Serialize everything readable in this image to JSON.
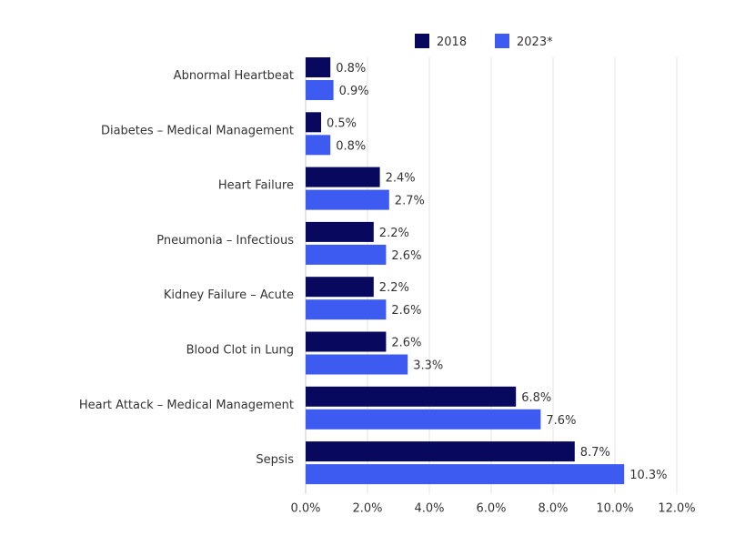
{
  "chart_data": {
    "type": "bar",
    "orientation": "horizontal",
    "title": "",
    "xlabel": "",
    "ylabel": "",
    "categories": [
      "Abnormal Heartbeat",
      "Diabetes – Medical Management",
      "Heart Failure",
      "Pneumonia – Infectious",
      "Kidney Failure – Acute",
      "Blood Clot in Lung",
      "Heart Attack – Medical Management",
      "Sepsis"
    ],
    "series": [
      {
        "name": "2018",
        "color": "#08085e",
        "values": [
          0.8,
          0.5,
          2.4,
          2.2,
          2.2,
          2.6,
          6.8,
          8.7
        ]
      },
      {
        "name": "2023*",
        "color": "#3d5af1",
        "values": [
          0.9,
          0.8,
          2.7,
          2.6,
          2.6,
          3.3,
          7.6,
          10.3
        ]
      }
    ],
    "xlim": [
      0,
      12
    ],
    "xticks": [
      "0.0%",
      "2.0%",
      "4.0%",
      "6.0%",
      "8.0%",
      "10.0%",
      "12.0%"
    ],
    "value_suffix": "%",
    "grid": true,
    "legend_position": "top"
  }
}
